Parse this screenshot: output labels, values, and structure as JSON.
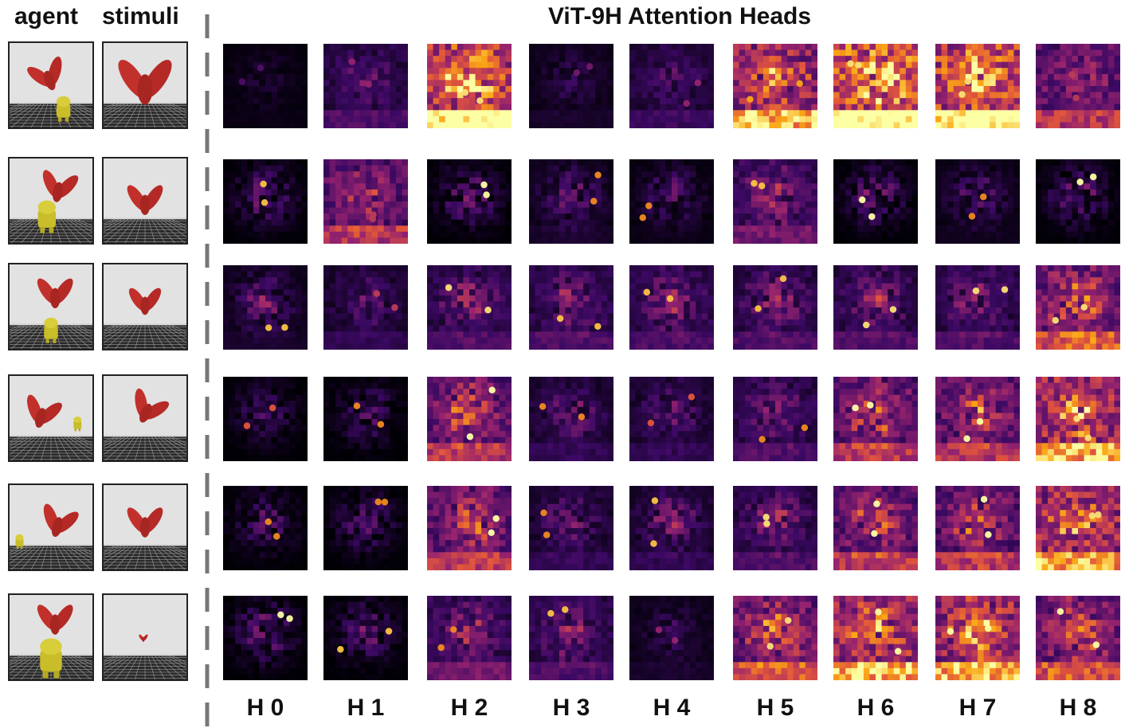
{
  "headers": {
    "agent": "agent",
    "stimuli": "stimuli"
  },
  "title": "ViT-9H Attention Heads",
  "columns": [
    "H 0",
    "H 1",
    "H 2",
    "H 3",
    "H 4",
    "H 5",
    "H 6",
    "H 7",
    "H 8"
  ],
  "rows": [
    {
      "agent": {
        "objX": 0.45,
        "objY": 0.35,
        "angle": -20,
        "agentX": 0.65,
        "agentY": 0.75,
        "agentScale": 0.35
      },
      "stimulus": {
        "objX": 0.5,
        "objY": 0.4,
        "angle": 0,
        "scale": 1.5
      },
      "heads": [
        {
          "bg": 0.02,
          "bright": 0.3
        },
        {
          "bg": 0.15,
          "bright": 0.5
        },
        {
          "bg": 0.55,
          "bright": 0.95
        },
        {
          "bg": 0.05,
          "bright": 0.4
        },
        {
          "bg": 0.12,
          "bright": 0.5
        },
        {
          "bg": 0.45,
          "bright": 0.85
        },
        {
          "bg": 0.6,
          "bright": 0.95
        },
        {
          "bg": 0.55,
          "bright": 0.95
        },
        {
          "bg": 0.3,
          "bright": 0.6
        }
      ]
    },
    {
      "agent": {
        "objX": 0.6,
        "objY": 0.3,
        "angle": 10,
        "agentX": 0.45,
        "agentY": 0.65,
        "agentScale": 0.45
      },
      "stimulus": {
        "objX": 0.5,
        "objY": 0.45,
        "angle": 0,
        "scale": 1.0
      },
      "heads": [
        {
          "bg": 0.0,
          "bright": 0.9
        },
        {
          "bg": 0.3,
          "bright": 0.6
        },
        {
          "bg": 0.0,
          "bright": 1.0
        },
        {
          "bg": 0.05,
          "bright": 0.8
        },
        {
          "bg": 0.02,
          "bright": 0.8
        },
        {
          "bg": 0.2,
          "bright": 0.9
        },
        {
          "bg": 0.0,
          "bright": 1.0
        },
        {
          "bg": 0.03,
          "bright": 0.8
        },
        {
          "bg": 0.0,
          "bright": 1.0
        }
      ]
    },
    {
      "agent": {
        "objX": 0.55,
        "objY": 0.3,
        "angle": 0,
        "agentX": 0.5,
        "agentY": 0.75,
        "agentScale": 0.35
      },
      "stimulus": {
        "objX": 0.5,
        "objY": 0.4,
        "angle": 0,
        "scale": 0.9
      },
      "heads": [
        {
          "bg": 0.05,
          "bright": 0.9
        },
        {
          "bg": 0.1,
          "bright": 0.6
        },
        {
          "bg": 0.15,
          "bright": 0.95
        },
        {
          "bg": 0.15,
          "bright": 0.9
        },
        {
          "bg": 0.15,
          "bright": 0.9
        },
        {
          "bg": 0.15,
          "bright": 0.9
        },
        {
          "bg": 0.15,
          "bright": 0.95
        },
        {
          "bg": 0.15,
          "bright": 0.95
        },
        {
          "bg": 0.35,
          "bright": 0.95
        }
      ]
    },
    {
      "agent": {
        "objX": 0.4,
        "objY": 0.4,
        "angle": 15,
        "agentX": 0.82,
        "agentY": 0.55,
        "agentScale": 0.2
      },
      "stimulus": {
        "objX": 0.55,
        "objY": 0.35,
        "angle": 25,
        "scale": 1.0
      },
      "heads": [
        {
          "bg": 0.0,
          "bright": 0.7
        },
        {
          "bg": 0.0,
          "bright": 0.8
        },
        {
          "bg": 0.3,
          "bright": 1.0
        },
        {
          "bg": 0.1,
          "bright": 0.8
        },
        {
          "bg": 0.1,
          "bright": 0.7
        },
        {
          "bg": 0.15,
          "bright": 0.8
        },
        {
          "bg": 0.3,
          "bright": 1.0
        },
        {
          "bg": 0.3,
          "bright": 1.0
        },
        {
          "bg": 0.45,
          "bright": 0.95
        }
      ]
    },
    {
      "agent": {
        "objX": 0.6,
        "objY": 0.4,
        "angle": 15,
        "agentX": 0.12,
        "agentY": 0.65,
        "agentScale": 0.2
      },
      "stimulus": {
        "objX": 0.5,
        "objY": 0.4,
        "angle": 0,
        "scale": 1.0
      },
      "heads": [
        {
          "bg": 0.0,
          "bright": 0.8
        },
        {
          "bg": 0.0,
          "bright": 0.8
        },
        {
          "bg": 0.3,
          "bright": 1.0
        },
        {
          "bg": 0.1,
          "bright": 0.8
        },
        {
          "bg": 0.1,
          "bright": 0.9
        },
        {
          "bg": 0.15,
          "bright": 0.95
        },
        {
          "bg": 0.3,
          "bright": 1.0
        },
        {
          "bg": 0.3,
          "bright": 1.0
        },
        {
          "bg": 0.45,
          "bright": 0.95
        }
      ]
    },
    {
      "agent": {
        "objX": 0.55,
        "objY": 0.25,
        "angle": 0,
        "agentX": 0.5,
        "agentY": 0.7,
        "agentScale": 0.55
      },
      "stimulus": {
        "objX": 0.48,
        "objY": 0.5,
        "angle": 0,
        "scale": 0.25
      },
      "heads": [
        {
          "bg": 0.0,
          "bright": 1.0
        },
        {
          "bg": 0.0,
          "bright": 0.9
        },
        {
          "bg": 0.2,
          "bright": 0.8
        },
        {
          "bg": 0.15,
          "bright": 0.9
        },
        {
          "bg": 0.05,
          "bright": 0.5
        },
        {
          "bg": 0.35,
          "bright": 0.95
        },
        {
          "bg": 0.45,
          "bright": 1.0
        },
        {
          "bg": 0.45,
          "bright": 1.0
        },
        {
          "bg": 0.35,
          "bright": 1.0
        }
      ]
    }
  ]
}
